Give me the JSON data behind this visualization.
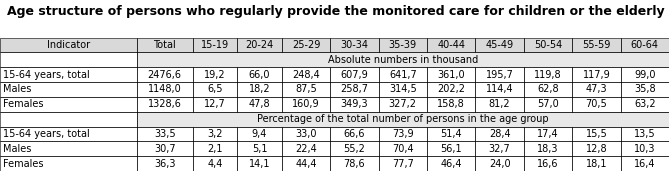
{
  "title": "Age structure of persons who regularly provide the monitored care for children or the elderly",
  "columns": [
    "Indicator",
    "Total",
    "15-19",
    "20-24",
    "25-29",
    "30-34",
    "35-39",
    "40-44",
    "45-49",
    "50-54",
    "55-59",
    "60-64"
  ],
  "section1_label": "Absolute numbers in thousand",
  "section2_label": "Percentage of the total number of persons in the age group",
  "rows_section1": [
    [
      "15-64 years, total",
      "2476,6",
      "19,2",
      "66,0",
      "248,4",
      "607,9",
      "641,7",
      "361,0",
      "195,7",
      "119,8",
      "117,9",
      "99,0"
    ],
    [
      "Males",
      "1148,0",
      "6,5",
      "18,2",
      "87,5",
      "258,7",
      "314,5",
      "202,2",
      "114,4",
      "62,8",
      "47,3",
      "35,8"
    ],
    [
      "Females",
      "1328,6",
      "12,7",
      "47,8",
      "160,9",
      "349,3",
      "327,2",
      "158,8",
      "81,2",
      "57,0",
      "70,5",
      "63,2"
    ]
  ],
  "rows_section2": [
    [
      "15-64 years, total",
      "33,5",
      "3,2",
      "9,4",
      "33,0",
      "66,6",
      "73,9",
      "51,4",
      "28,4",
      "17,4",
      "15,5",
      "13,5"
    ],
    [
      "Males",
      "30,7",
      "2,1",
      "5,1",
      "22,4",
      "55,2",
      "70,4",
      "56,1",
      "32,7",
      "18,3",
      "12,8",
      "10,3"
    ],
    [
      "Females",
      "36,3",
      "4,4",
      "14,1",
      "44,4",
      "78,6",
      "77,7",
      "46,4",
      "24,0",
      "16,6",
      "18,1",
      "16,4"
    ]
  ],
  "col_widths_raw": [
    1.75,
    0.72,
    0.57,
    0.57,
    0.62,
    0.62,
    0.62,
    0.62,
    0.62,
    0.62,
    0.62,
    0.62
  ],
  "header_bg": "#d9d9d9",
  "section_bg": "#e8e8e8",
  "white_bg": "#ffffff",
  "border_color": "#000000",
  "title_fontsize": 9,
  "header_fontsize": 7,
  "cell_fontsize": 7,
  "section_label_fontsize": 7
}
